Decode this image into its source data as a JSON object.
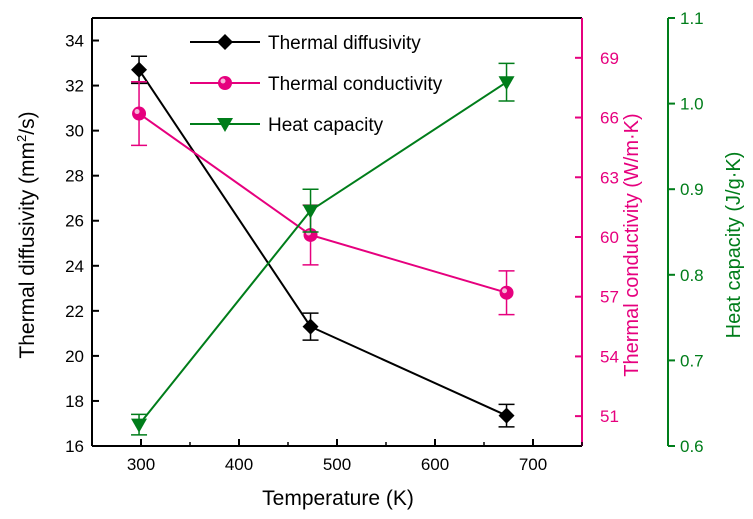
{
  "chart_data": {
    "type": "line",
    "xlabel": "Temperature (K)",
    "x_ticks": [
      "300",
      "400",
      "500",
      "600",
      "700"
    ],
    "xlim": [
      250,
      750
    ],
    "axes": {
      "left": {
        "label": "Thermal diffusivity (mm²/s)",
        "label_main": "Thermal diffusivity ",
        "label_unit_open": "(mm",
        "label_unit_sup": "2",
        "label_unit_close": "/s)",
        "ylim": [
          16,
          35
        ],
        "ticks": [
          "16",
          "18",
          "20",
          "22",
          "24",
          "26",
          "28",
          "30",
          "32",
          "34"
        ],
        "color": "#000000"
      },
      "right1": {
        "label": "Thermal conductivity (W/m·K)",
        "ylim": [
          49.5,
          71
        ],
        "ticks": [
          "51",
          "54",
          "57",
          "60",
          "63",
          "66",
          "69"
        ],
        "color": "#e6007e"
      },
      "right2": {
        "label": "Heat capacity (J/g·K)",
        "ylim": [
          0.6,
          1.1
        ],
        "ticks": [
          "0.6",
          "0.7",
          "0.8",
          "0.9",
          "1.0",
          "1.1"
        ],
        "color": "#007d1a"
      }
    },
    "series": [
      {
        "name": "Thermal diffusivity",
        "axis": "left",
        "color": "#000000",
        "marker": "diamond",
        "x": [
          298,
          473,
          673
        ],
        "y": [
          32.7,
          21.3,
          17.35
        ],
        "err": [
          0.6,
          0.6,
          0.5
        ]
      },
      {
        "name": "Thermal conductivity",
        "axis": "right1",
        "color": "#e6007e",
        "marker": "circle",
        "x": [
          298,
          473,
          673
        ],
        "y": [
          66.2,
          60.1,
          57.2
        ],
        "err": [
          1.6,
          1.5,
          1.1
        ]
      },
      {
        "name": "Heat capacity",
        "axis": "right2",
        "color": "#007d1a",
        "marker": "triangle-down",
        "x": [
          298,
          473,
          673
        ],
        "y": [
          0.625,
          0.875,
          1.025
        ],
        "err": [
          0.012,
          0.025,
          0.022
        ]
      }
    ],
    "legend_position": "top-left"
  }
}
